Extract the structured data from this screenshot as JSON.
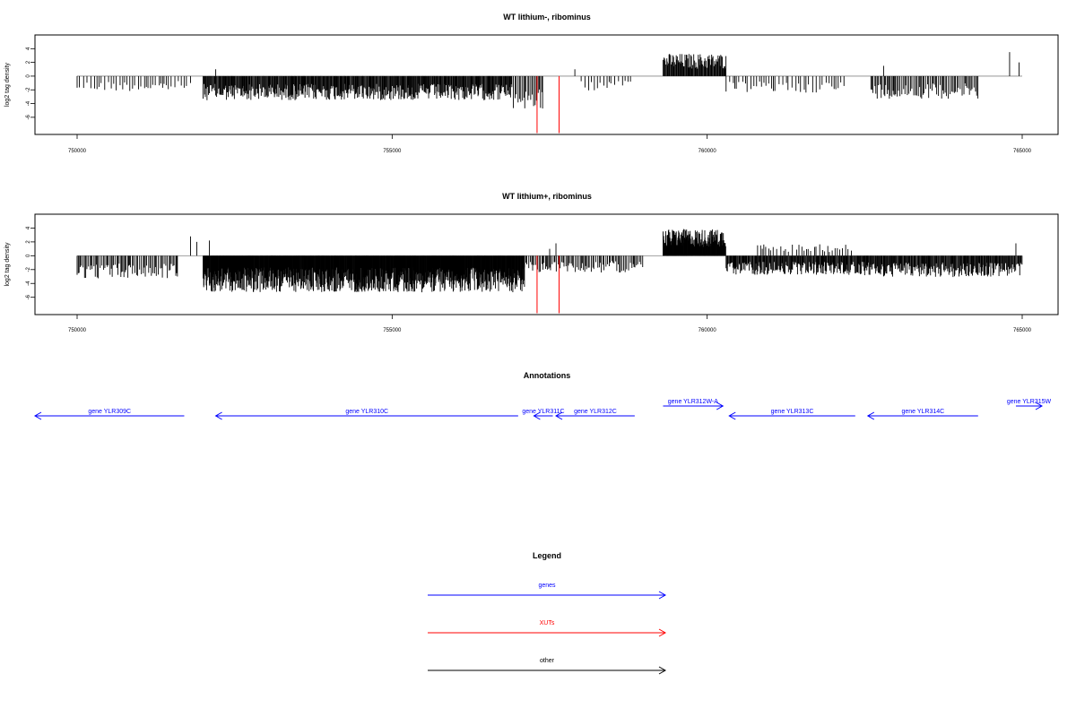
{
  "chart_data": [
    {
      "type": "bar",
      "title": "WT lithium-, ribominus",
      "ylabel": "log2 tag density",
      "xlim": [
        750000,
        765000
      ],
      "ylim": [
        -8.5,
        6
      ],
      "x_ticks": [
        750000,
        755000,
        760000,
        765000
      ],
      "y_ticks": [
        -6,
        -4,
        -2,
        0,
        2,
        4
      ],
      "colors": {
        "bars": "#000000",
        "xut_marks": "#ff0000",
        "baseline": "#888888"
      },
      "regions": [
        {
          "from": 750000,
          "to": 751800,
          "value": -2.0,
          "density": "sparse"
        },
        {
          "from": 752000,
          "to": 756900,
          "value": -3.2,
          "density": "dense"
        },
        {
          "from": 756900,
          "to": 757400,
          "value": -4.5,
          "density": "medium"
        },
        {
          "from": 758000,
          "to": 758800,
          "value": -2.0,
          "density": "sparse"
        },
        {
          "from": 759300,
          "to": 760300,
          "value": 3.0,
          "density": "dense"
        },
        {
          "from": 760300,
          "to": 762200,
          "value": -2.2,
          "density": "sparse"
        },
        {
          "from": 762600,
          "to": 764300,
          "value": -3.0,
          "density": "medium"
        }
      ],
      "spikes": [
        {
          "x": 752200,
          "value": 1.0
        },
        {
          "x": 757900,
          "value": 1.0
        },
        {
          "x": 762800,
          "value": 1.5
        },
        {
          "x": 764800,
          "value": 3.5
        },
        {
          "x": 764950,
          "value": 2.0
        }
      ],
      "xut_marks": [
        {
          "x": 757300,
          "value": -8.3
        },
        {
          "x": 757650,
          "value": -8.3
        }
      ]
    },
    {
      "type": "bar",
      "title": "WT lithium+, ribominus",
      "ylabel": "log2 tag density",
      "xlim": [
        750000,
        765000
      ],
      "ylim": [
        -8.5,
        6
      ],
      "x_ticks": [
        750000,
        755000,
        760000,
        765000
      ],
      "y_ticks": [
        -6,
        -4,
        -2,
        0,
        2,
        4
      ],
      "colors": {
        "bars": "#000000",
        "xut_marks": "#ff0000",
        "baseline": "#888888"
      },
      "regions": [
        {
          "from": 750000,
          "to": 751600,
          "value": -3.0,
          "density": "medium"
        },
        {
          "from": 752000,
          "to": 757100,
          "value": -4.8,
          "density": "very-dense"
        },
        {
          "from": 757100,
          "to": 759000,
          "value": -2.2,
          "density": "medium"
        },
        {
          "from": 759300,
          "to": 760300,
          "value": 3.5,
          "density": "very-dense"
        },
        {
          "from": 760300,
          "to": 762500,
          "value": -2.5,
          "density": "dense"
        },
        {
          "from": 760800,
          "to": 762300,
          "value": 1.5,
          "density": "sparse"
        },
        {
          "from": 762500,
          "to": 765000,
          "value": -2.8,
          "density": "dense"
        }
      ],
      "spikes": [
        {
          "x": 751800,
          "value": 2.8
        },
        {
          "x": 751900,
          "value": 2.0
        },
        {
          "x": 752100,
          "value": 2.2
        },
        {
          "x": 757600,
          "value": 1.8
        },
        {
          "x": 757500,
          "value": 1.0
        },
        {
          "x": 764900,
          "value": 1.8
        }
      ],
      "xut_marks": [
        {
          "x": 757300,
          "value": -8.3
        },
        {
          "x": 757650,
          "value": -8.3
        }
      ]
    }
  ],
  "annotations": {
    "title": "Annotations",
    "genes": [
      {
        "label": "gene YLR309C",
        "from": 749300,
        "to": 751700,
        "strand": "-",
        "row": 1
      },
      {
        "label": "gene YLR310C",
        "from": 752200,
        "to": 757000,
        "strand": "-",
        "row": 1
      },
      {
        "label": "gene YLR311C",
        "from": 757250,
        "to": 757550,
        "strand": "-",
        "row": 1
      },
      {
        "label": "gene YLR312C",
        "from": 757600,
        "to": 758850,
        "strand": "-",
        "row": 1
      },
      {
        "label": "gene YLR312W-A",
        "from": 759300,
        "to": 760250,
        "strand": "+",
        "row": 0
      },
      {
        "label": "gene YLR313C",
        "from": 760350,
        "to": 762350,
        "strand": "-",
        "row": 1
      },
      {
        "label": "gene YLR314C",
        "from": 762550,
        "to": 764300,
        "strand": "-",
        "row": 1
      },
      {
        "label": "gene YLR315W",
        "from": 764900,
        "to": 765400,
        "strand": "+",
        "row": 0
      }
    ],
    "color": "#0000ff"
  },
  "legend": {
    "title": "Legend",
    "items": [
      {
        "label": "genes",
        "color": "#0000ff"
      },
      {
        "label": "XUTs",
        "color": "#ff0000"
      },
      {
        "label": "other",
        "color": "#000000"
      }
    ]
  }
}
